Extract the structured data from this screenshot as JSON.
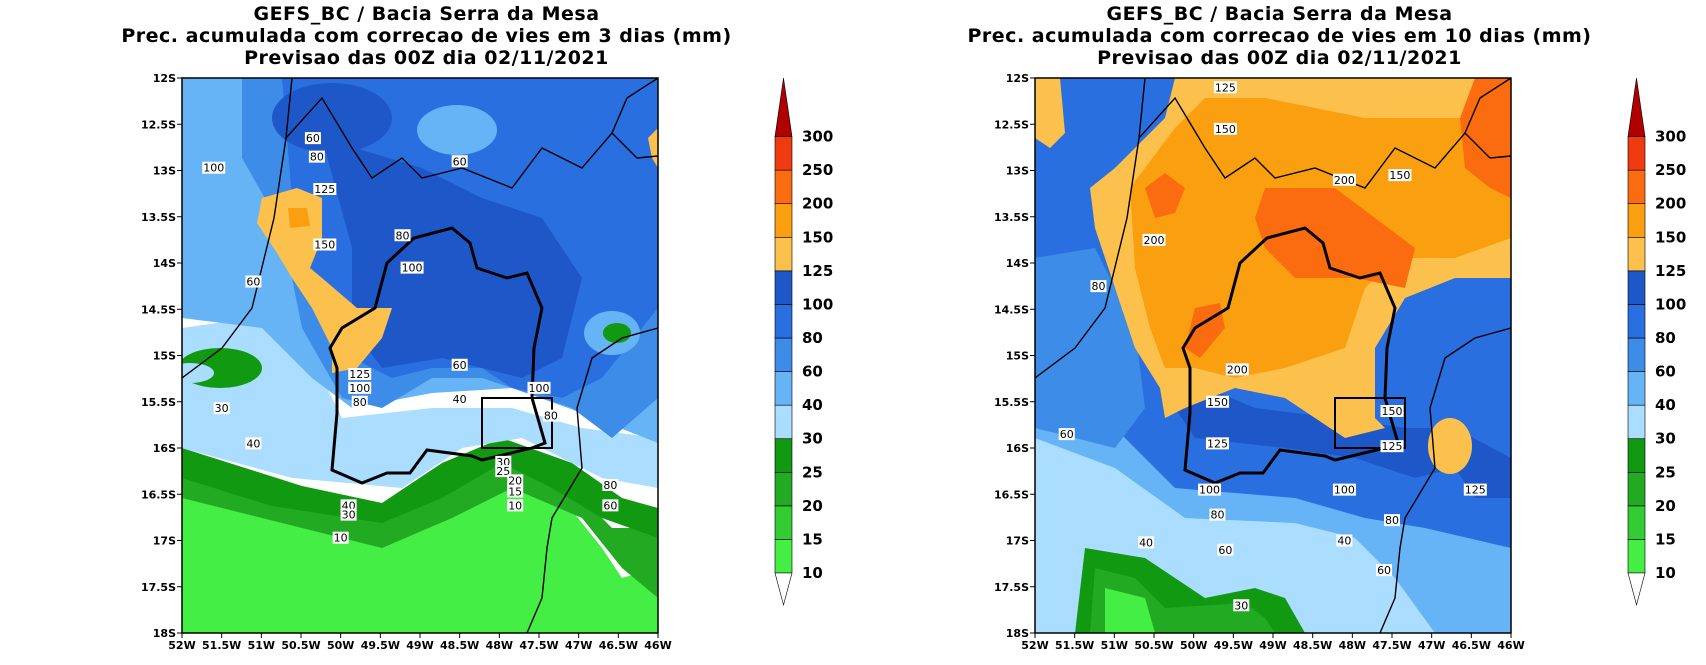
{
  "panels": [
    {
      "title_line1": "GEFS_BC / Bacia Serra da Mesa",
      "title_line2": "Prec. acumulada com correcao de vies em 3 dias (mm)",
      "title_line3": "Previsao das 00Z dia 02/11/2021",
      "contour_labels": [
        {
          "text": "60",
          "lon": -50.35,
          "lat": -12.65
        },
        {
          "text": "80",
          "lon": -50.3,
          "lat": -12.85
        },
        {
          "text": "100",
          "lon": -51.6,
          "lat": -12.97
        },
        {
          "text": "125",
          "lon": -50.2,
          "lat": -13.2
        },
        {
          "text": "150",
          "lon": -50.2,
          "lat": -13.8
        },
        {
          "text": "80",
          "lon": -49.22,
          "lat": -13.7
        },
        {
          "text": "100",
          "lon": -49.1,
          "lat": -14.05
        },
        {
          "text": "60",
          "lon": -48.5,
          "lat": -12.9
        },
        {
          "text": "60",
          "lon": -51.1,
          "lat": -14.2
        },
        {
          "text": "125",
          "lon": -49.76,
          "lat": -15.2
        },
        {
          "text": "100",
          "lon": -49.76,
          "lat": -15.35
        },
        {
          "text": "80",
          "lon": -49.76,
          "lat": -15.5
        },
        {
          "text": "60",
          "lon": -48.5,
          "lat": -15.1
        },
        {
          "text": "40",
          "lon": -48.5,
          "lat": -15.47
        },
        {
          "text": "100",
          "lon": -47.5,
          "lat": -15.35
        },
        {
          "text": "80",
          "lon": -47.35,
          "lat": -15.65
        },
        {
          "text": "30",
          "lon": -51.5,
          "lat": -15.57
        },
        {
          "text": "40",
          "lon": -51.1,
          "lat": -15.95
        },
        {
          "text": "30",
          "lon": -47.95,
          "lat": -16.15
        },
        {
          "text": "25",
          "lon": -47.95,
          "lat": -16.25
        },
        {
          "text": "20",
          "lon": -47.8,
          "lat": -16.35
        },
        {
          "text": "15",
          "lon": -47.8,
          "lat": -16.47
        },
        {
          "text": "10",
          "lon": -47.8,
          "lat": -16.62
        },
        {
          "text": "40",
          "lon": -49.9,
          "lat": -16.62
        },
        {
          "text": "30",
          "lon": -49.9,
          "lat": -16.72
        },
        {
          "text": "10",
          "lon": -50.0,
          "lat": -16.97
        },
        {
          "text": "80",
          "lon": -46.6,
          "lat": -16.4
        },
        {
          "text": "60",
          "lon": -46.6,
          "lat": -16.62
        }
      ]
    },
    {
      "title_line1": "GEFS_BC / Bacia Serra da Mesa",
      "title_line2": "Prec. acumulada com correcao de vies em 10 dias (mm)",
      "title_line3": "Previsao das 00Z dia 02/11/2021",
      "contour_labels": [
        {
          "text": "125",
          "lon": -49.6,
          "lat": -12.1
        },
        {
          "text": "150",
          "lon": -49.6,
          "lat": -12.55
        },
        {
          "text": "200",
          "lon": -48.1,
          "lat": -13.1
        },
        {
          "text": "150",
          "lon": -47.4,
          "lat": -13.05
        },
        {
          "text": "200",
          "lon": -50.5,
          "lat": -13.75
        },
        {
          "text": "80",
          "lon": -51.2,
          "lat": -14.25
        },
        {
          "text": "200",
          "lon": -49.45,
          "lat": -15.15
        },
        {
          "text": "150",
          "lon": -49.7,
          "lat": -15.5
        },
        {
          "text": "150",
          "lon": -47.5,
          "lat": -15.6
        },
        {
          "text": "125",
          "lon": -49.7,
          "lat": -15.95
        },
        {
          "text": "125",
          "lon": -47.5,
          "lat": -15.98
        },
        {
          "text": "60",
          "lon": -51.6,
          "lat": -15.85
        },
        {
          "text": "100",
          "lon": -49.8,
          "lat": -16.45
        },
        {
          "text": "100",
          "lon": -48.1,
          "lat": -16.45
        },
        {
          "text": "125",
          "lon": -46.45,
          "lat": -16.45
        },
        {
          "text": "80",
          "lon": -49.7,
          "lat": -16.72
        },
        {
          "text": "80",
          "lon": -47.5,
          "lat": -16.78
        },
        {
          "text": "40",
          "lon": -50.6,
          "lat": -17.02
        },
        {
          "text": "40",
          "lon": -48.1,
          "lat": -17.0
        },
        {
          "text": "60",
          "lon": -49.6,
          "lat": -17.1
        },
        {
          "text": "60",
          "lon": -47.6,
          "lat": -17.32
        },
        {
          "text": "30",
          "lon": -49.4,
          "lat": -17.7
        }
      ]
    }
  ],
  "axes": {
    "lat_labels": [
      "12S",
      "12.5S",
      "13S",
      "13.5S",
      "14S",
      "14.5S",
      "15S",
      "15.5S",
      "16S",
      "16.5S",
      "17S",
      "17.5S",
      "18S"
    ],
    "lon_labels": [
      "52W",
      "51.5W",
      "51W",
      "50.5W",
      "50W",
      "49.5W",
      "49W",
      "48.5W",
      "48W",
      "47.5W",
      "47W",
      "46.5W",
      "46W"
    ],
    "lon_range": [
      -52,
      -46
    ],
    "lat_range": [
      -18,
      -12
    ]
  },
  "colorbar": {
    "levels": [
      "10",
      "15",
      "20",
      "25",
      "30",
      "40",
      "60",
      "80",
      "100",
      "125",
      "150",
      "200",
      "250",
      "300"
    ],
    "colors": [
      "#44ee44",
      "#33cc33",
      "#22aa22",
      "#119911",
      "#aaddff",
      "#66b3f5",
      "#3d8ce8",
      "#2a6fe0",
      "#1e58c8",
      "#fcc04c",
      "#fa9f10",
      "#fb6c10",
      "#f03a10",
      "#b00000"
    ]
  },
  "fills": {
    "white": "#ffffff",
    "green_dark": "#119911",
    "green_mid": "#22aa22",
    "green_light": "#44ee44",
    "blue_pale": "#aaddff",
    "blue_light": "#66b3f5",
    "blue_mid": "#3d8ce8",
    "blue": "#2a6fe0",
    "blue_dark": "#1e58c8",
    "orange_light": "#fcc04c",
    "orange": "#fa9f10",
    "orange_dark": "#fb6c10"
  }
}
